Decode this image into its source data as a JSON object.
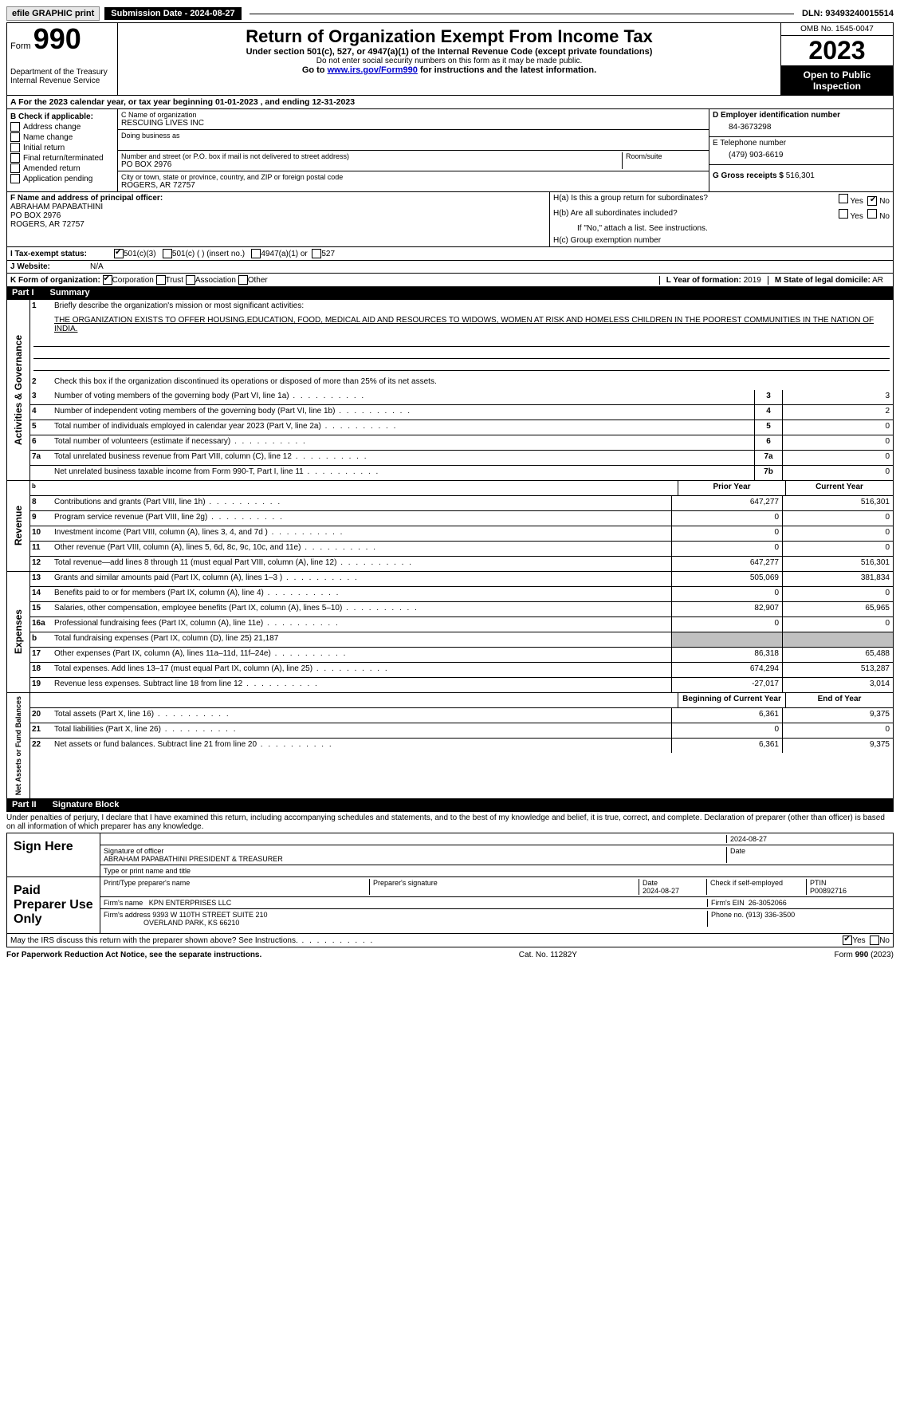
{
  "top": {
    "efile": "efile GRAPHIC print",
    "submission": "Submission Date - 2024-08-27",
    "dln": "DLN: 93493240015514"
  },
  "header": {
    "form": "Form",
    "num": "990",
    "dept": "Department of the Treasury Internal Revenue Service",
    "title": "Return of Organization Exempt From Income Tax",
    "sub1": "Under section 501(c), 527, or 4947(a)(1) of the Internal Revenue Code (except private foundations)",
    "sub2": "Do not enter social security numbers on this form as it may be made public.",
    "goto_pre": "Go to ",
    "goto_link": "www.irs.gov/Form990",
    "goto_post": " for instructions and the latest information.",
    "omb": "OMB No. 1545-0047",
    "year": "2023",
    "open": "Open to Public Inspection"
  },
  "rowA": "A  For the 2023 calendar year, or tax year beginning 01-01-2023    , and ending 12-31-2023",
  "colB": {
    "label": "B Check if applicable:",
    "opts": [
      "Address change",
      "Name change",
      "Initial return",
      "Final return/terminated",
      "Amended return",
      "Application pending"
    ]
  },
  "colC": {
    "name_lbl": "C Name of organization",
    "name": "RESCUING LIVES INC",
    "dba_lbl": "Doing business as",
    "addr_lbl": "Number and street (or P.O. box if mail is not delivered to street address)",
    "addr": "PO BOX 2976",
    "room_lbl": "Room/suite",
    "city_lbl": "City or town, state or province, country, and ZIP or foreign postal code",
    "city": "ROGERS, AR  72757"
  },
  "colD": {
    "ein_lbl": "D Employer identification number",
    "ein": "84-3673298",
    "tel_lbl": "E Telephone number",
    "tel": "(479) 903-6619",
    "gross_lbl": "G Gross receipts $",
    "gross": "516,301"
  },
  "rowF": {
    "label": "F  Name and address of principal officer:",
    "name": "ABRAHAM PAPABATHINI",
    "addr1": "PO BOX 2976",
    "addr2": "ROGERS, AR  72757"
  },
  "rowH": {
    "ha": "H(a)  Is this a group return for subordinates?",
    "hb": "H(b)  Are all subordinates included?",
    "hb_note": "If \"No,\" attach a list. See instructions.",
    "hc": "H(c)  Group exemption number",
    "yes": "Yes",
    "no": "No"
  },
  "rowI": {
    "label": "I    Tax-exempt status:",
    "o1": "501(c)(3)",
    "o2": "501(c) (  ) (insert no.)",
    "o3": "4947(a)(1) or",
    "o4": "527"
  },
  "rowJ": {
    "label": "J    Website:",
    "val": "N/A"
  },
  "rowK": {
    "label": "K Form of organization:",
    "o1": "Corporation",
    "o2": "Trust",
    "o3": "Association",
    "o4": "Other"
  },
  "rowL": {
    "label": "L Year of formation:",
    "val": "2019"
  },
  "rowM": {
    "label": "M State of legal domicile:",
    "val": "AR"
  },
  "partI": {
    "num": "Part I",
    "title": "Summary"
  },
  "summary": {
    "q1": "Briefly describe the organization's mission or most significant activities:",
    "q1a": "THE ORGANIZATION EXISTS TO OFFER HOUSING,EDUCATION, FOOD, MEDICAL AID AND RESOURCES TO WIDOWS, WOMEN AT RISK AND HOMELESS CHILDREN IN THE POOREST COMMUNITIES IN THE NATION OF INDIA.",
    "q2": "Check this box        if the organization discontinued its operations or disposed of more than 25% of its net assets.",
    "lines_gov": [
      {
        "n": "3",
        "t": "Number of voting members of the governing body (Part VI, line 1a)",
        "box": "3",
        "v": "3"
      },
      {
        "n": "4",
        "t": "Number of independent voting members of the governing body (Part VI, line 1b)",
        "box": "4",
        "v": "2"
      },
      {
        "n": "5",
        "t": "Total number of individuals employed in calendar year 2023 (Part V, line 2a)",
        "box": "5",
        "v": "0"
      },
      {
        "n": "6",
        "t": "Total number of volunteers (estimate if necessary)",
        "box": "6",
        "v": "0"
      },
      {
        "n": "7a",
        "t": "Total unrelated business revenue from Part VIII, column (C), line 12",
        "box": "7a",
        "v": "0"
      },
      {
        "n": "",
        "t": "Net unrelated business taxable income from Form 990-T, Part I, line 11",
        "box": "7b",
        "v": "0"
      }
    ],
    "hdr_prior": "Prior Year",
    "hdr_curr": "Current Year",
    "lines_rev": [
      {
        "n": "8",
        "t": "Contributions and grants (Part VIII, line 1h)",
        "p": "647,277",
        "c": "516,301"
      },
      {
        "n": "9",
        "t": "Program service revenue (Part VIII, line 2g)",
        "p": "0",
        "c": "0"
      },
      {
        "n": "10",
        "t": "Investment income (Part VIII, column (A), lines 3, 4, and 7d )",
        "p": "0",
        "c": "0"
      },
      {
        "n": "11",
        "t": "Other revenue (Part VIII, column (A), lines 5, 6d, 8c, 9c, 10c, and 11e)",
        "p": "0",
        "c": "0"
      },
      {
        "n": "12",
        "t": "Total revenue—add lines 8 through 11 (must equal Part VIII, column (A), line 12)",
        "p": "647,277",
        "c": "516,301"
      }
    ],
    "lines_exp": [
      {
        "n": "13",
        "t": "Grants and similar amounts paid (Part IX, column (A), lines 1–3 )",
        "p": "505,069",
        "c": "381,834"
      },
      {
        "n": "14",
        "t": "Benefits paid to or for members (Part IX, column (A), line 4)",
        "p": "0",
        "c": "0"
      },
      {
        "n": "15",
        "t": "Salaries, other compensation, employee benefits (Part IX, column (A), lines 5–10)",
        "p": "82,907",
        "c": "65,965"
      },
      {
        "n": "16a",
        "t": "Professional fundraising fees (Part IX, column (A), line 11e)",
        "p": "0",
        "c": "0"
      },
      {
        "n": "b",
        "t": "Total fundraising expenses (Part IX, column (D), line 25) 21,187",
        "p": "",
        "c": "",
        "grey": true
      },
      {
        "n": "17",
        "t": "Other expenses (Part IX, column (A), lines 11a–11d, 11f–24e)",
        "p": "86,318",
        "c": "65,488"
      },
      {
        "n": "18",
        "t": "Total expenses. Add lines 13–17 (must equal Part IX, column (A), line 25)",
        "p": "674,294",
        "c": "513,287"
      },
      {
        "n": "19",
        "t": "Revenue less expenses. Subtract line 18 from line 12",
        "p": "-27,017",
        "c": "3,014"
      }
    ],
    "hdr_beg": "Beginning of Current Year",
    "hdr_end": "End of Year",
    "lines_net": [
      {
        "n": "20",
        "t": "Total assets (Part X, line 16)",
        "p": "6,361",
        "c": "9,375"
      },
      {
        "n": "21",
        "t": "Total liabilities (Part X, line 26)",
        "p": "0",
        "c": "0"
      },
      {
        "n": "22",
        "t": "Net assets or fund balances. Subtract line 21 from line 20",
        "p": "6,361",
        "c": "9,375"
      }
    ],
    "vlabels": {
      "gov": "Activities & Governance",
      "rev": "Revenue",
      "exp": "Expenses",
      "net": "Net Assets or Fund Balances"
    }
  },
  "partII": {
    "num": "Part II",
    "title": "Signature Block"
  },
  "sig": {
    "decl": "Under penalties of perjury, I declare that I have examined this return, including accompanying schedules and statements, and to the best of my knowledge and belief, it is true, correct, and complete. Declaration of preparer (other than officer) is based on all information of which preparer has any knowledge.",
    "sign_here": "Sign Here",
    "date": "2024-08-27",
    "sig_off_lbl": "Signature of officer",
    "officer": "ABRAHAM PAPABATHINI  PRESIDENT & TREASURER",
    "type_lbl": "Type or print name and title",
    "date_lbl": "Date",
    "paid": "Paid Preparer Use Only",
    "prep_name_lbl": "Print/Type preparer's name",
    "prep_sig_lbl": "Preparer's signature",
    "prep_date": "2024-08-27",
    "check_lbl": "Check          if self-employed",
    "ptin_lbl": "PTIN",
    "ptin": "P00892716",
    "firm_name_lbl": "Firm's name",
    "firm_name": "KPN ENTERPRISES LLC",
    "firm_ein_lbl": "Firm's EIN",
    "firm_ein": "26-3052066",
    "firm_addr_lbl": "Firm's address",
    "firm_addr1": "9393 W 110TH STREET SUITE 210",
    "firm_addr2": "OVERLAND PARK, KS  66210",
    "phone_lbl": "Phone no.",
    "phone": "(913) 336-3500",
    "discuss": "May the IRS discuss this return with the preparer shown above? See Instructions."
  },
  "footer": {
    "pra": "For Paperwork Reduction Act Notice, see the separate instructions.",
    "cat": "Cat. No. 11282Y",
    "form": "Form 990 (2023)"
  }
}
